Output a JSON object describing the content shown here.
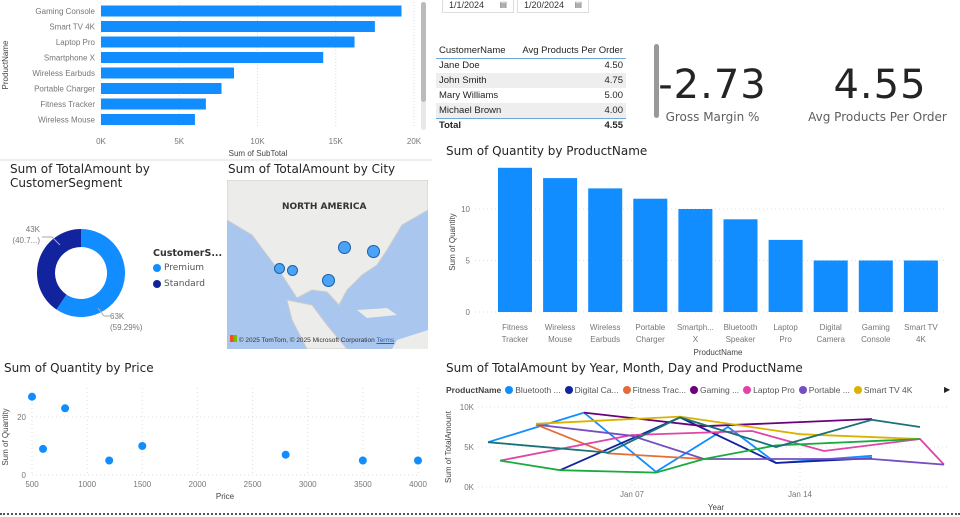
{
  "date_slicer": {
    "start": "1/1/2024",
    "end": "1/20/2024",
    "icon": "calendar-icon"
  },
  "subtotal_chart": {
    "type": "bar",
    "orientation": "horizontal",
    "ylabel": "ProductName",
    "xlabel": "Sum of SubTotal",
    "categories": [
      "Gaming Console",
      "Smart TV 4K",
      "Laptop Pro",
      "Smartphone X",
      "Wireless Earbuds",
      "Portable Charger",
      "Fitness Tracker",
      "Wireless Mouse"
    ],
    "values": [
      19200,
      17500,
      16200,
      14200,
      8500,
      7700,
      6700,
      6000
    ],
    "xlim": [
      0,
      20000
    ],
    "ticks": [
      "0K",
      "5K",
      "10K",
      "15K",
      "20K"
    ],
    "color": "#118DFF"
  },
  "table": {
    "columns": [
      "CustomerName",
      "Avg Products Per Order"
    ],
    "rows": [
      [
        "Jane Doe",
        "4.50"
      ],
      [
        "John Smith",
        "4.75"
      ],
      [
        "Mary Williams",
        "5.00"
      ],
      [
        "Michael Brown",
        "4.00"
      ]
    ],
    "total": [
      "Total",
      "4.55"
    ]
  },
  "kpis": [
    {
      "value": "-2.73",
      "label": "Gross Margin %"
    },
    {
      "value": "4.55",
      "label": "Avg Products Per Order"
    }
  ],
  "donut": {
    "title": "Sum of TotalAmount by CustomerSegment",
    "legend_title": "CustomerS...",
    "slices": [
      {
        "name": "Premium",
        "value": 63,
        "label": "63K",
        "pct": "(59.29%)",
        "color": "#118DFF"
      },
      {
        "name": "Standard",
        "value": 43,
        "label": "43K",
        "pct": "(40.7...)",
        "color": "#12239E"
      }
    ]
  },
  "map": {
    "title": "Sum of TotalAmount by City",
    "region_label": "NORTH AMERICA",
    "attribution": "© 2025 TomTom, © 2025 Microsoft Corporation",
    "terms": "Terms"
  },
  "column_chart": {
    "type": "bar",
    "title": "Sum of Quantity by ProductName",
    "xlabel": "ProductName",
    "ylabel": "Sum of Quantity",
    "categories": [
      [
        "Fitness",
        "Tracker"
      ],
      [
        "Wireless",
        "Mouse"
      ],
      [
        "Wireless",
        "Earbuds"
      ],
      [
        "Portable",
        "Charger"
      ],
      [
        "Smartph...",
        "X"
      ],
      [
        "Bluetooth",
        "Speaker"
      ],
      [
        "Laptop",
        "Pro"
      ],
      [
        "Digital",
        "Camera"
      ],
      [
        "Gaming",
        "Console"
      ],
      [
        "Smart TV",
        "4K"
      ]
    ],
    "values": [
      14,
      13,
      12,
      11,
      10,
      9,
      7,
      5,
      5,
      5
    ],
    "ylim": [
      0,
      14
    ],
    "ticks": [
      0,
      5,
      10
    ],
    "color": "#118DFF"
  },
  "scatter": {
    "type": "scatter",
    "title": "Sum of Quantity by Price",
    "xlabel": "Price",
    "ylabel": "Sum of Quantity",
    "points": [
      [
        500,
        27
      ],
      [
        600,
        9
      ],
      [
        800,
        23
      ],
      [
        1200,
        5
      ],
      [
        1500,
        10
      ],
      [
        2800,
        7
      ],
      [
        3500,
        5
      ],
      [
        4000,
        5
      ]
    ],
    "xlim": [
      500,
      4000
    ],
    "ylim": [
      0,
      28
    ],
    "xticks": [
      500,
      1000,
      1500,
      2000,
      2500,
      3000,
      3500,
      4000
    ],
    "yticks": [
      0,
      20
    ]
  },
  "line_chart": {
    "type": "line",
    "title": "Sum of TotalAmount by Year, Month, Day and ProductName",
    "xlabel": "Year",
    "ylabel": "Sum of TotalAmount",
    "legend_title": "ProductName",
    "xlim": [
      "2024-01-01",
      "2024-01-20"
    ],
    "ylim": [
      0,
      10000
    ],
    "yticks": [
      "0K",
      "5K",
      "10K"
    ],
    "xticks": [
      "Jan 07",
      "Jan 14"
    ],
    "series": [
      {
        "name": "Bluetooth ...",
        "color": "#118DFF",
        "points": [
          [
            1,
            5600
          ],
          [
            5,
            9300
          ],
          [
            8,
            1900
          ],
          [
            11,
            7500
          ],
          [
            13,
            3000
          ],
          [
            17,
            3900
          ]
        ]
      },
      {
        "name": "Digital Ca...",
        "color": "#12239E",
        "points": [
          [
            4,
            2100
          ],
          [
            9,
            8700
          ],
          [
            13,
            3000
          ],
          [
            17,
            3600
          ]
        ]
      },
      {
        "name": "Fitness Trac...",
        "color": "#E66C37",
        "points": [
          [
            3,
            7800
          ],
          [
            6,
            4200
          ],
          [
            10,
            3500
          ]
        ]
      },
      {
        "name": "Gaming ...",
        "color": "#6B007B",
        "points": [
          [
            5,
            9300
          ],
          [
            10,
            7600
          ],
          [
            17,
            8500
          ]
        ]
      },
      {
        "name": "Laptop Pro",
        "color": "#E044A7",
        "points": [
          [
            1.5,
            3300
          ],
          [
            7,
            6500
          ],
          [
            12,
            7000
          ],
          [
            15,
            4500
          ],
          [
            19,
            6000
          ],
          [
            20,
            2800
          ]
        ]
      },
      {
        "name": "Portable ...",
        "color": "#744EC2",
        "points": [
          [
            3,
            7800
          ],
          [
            7,
            6400
          ],
          [
            10,
            3500
          ],
          [
            17,
            3500
          ],
          [
            20,
            2800
          ]
        ]
      },
      {
        "name": "Smart TV 4K",
        "color": "#D9B300",
        "points": [
          [
            3,
            7900
          ],
          [
            9,
            8800
          ],
          [
            14,
            6600
          ],
          [
            19,
            6000
          ]
        ]
      },
      {
        "color": "#1AAB40",
        "points": [
          [
            1.5,
            3300
          ],
          [
            4,
            2100
          ],
          [
            8,
            1800
          ],
          [
            10,
            3500
          ],
          [
            13,
            5200
          ],
          [
            19,
            6000
          ]
        ]
      },
      {
        "color": "#197278",
        "points": [
          [
            1,
            5600
          ],
          [
            6,
            4300
          ],
          [
            9,
            8700
          ],
          [
            13,
            5000
          ],
          [
            17,
            8400
          ],
          [
            19,
            7500
          ]
        ]
      }
    ]
  }
}
